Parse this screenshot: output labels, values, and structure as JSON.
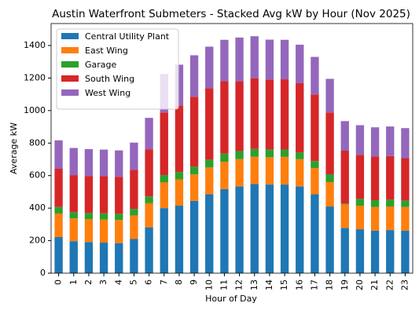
{
  "chart_data": {
    "type": "stacked_bar",
    "title": "Austin Waterfront Submeters - Stacked Avg kW by Hour (Nov 2025)",
    "x_label": "Hour of Day",
    "y_label": "Average kW",
    "categories": [
      "0",
      "1",
      "2",
      "3",
      "4",
      "5",
      "6",
      "7",
      "8",
      "9",
      "10",
      "11",
      "12",
      "13",
      "14",
      "15",
      "16",
      "17",
      "18",
      "19",
      "20",
      "21",
      "22",
      "23"
    ],
    "series": [
      {
        "name": "Central Utility Plant",
        "color": "#1f77b4",
        "values": [
          222,
          197,
          192,
          188,
          185,
          210,
          282,
          400,
          415,
          445,
          485,
          517,
          533,
          548,
          545,
          545,
          533,
          485,
          410,
          278,
          270,
          262,
          265,
          262
        ]
      },
      {
        "name": "East Wing",
        "color": "#ff7f0e",
        "values": [
          145,
          140,
          140,
          142,
          142,
          145,
          148,
          158,
          162,
          162,
          165,
          168,
          168,
          168,
          168,
          170,
          168,
          162,
          150,
          145,
          145,
          145,
          145,
          145
        ]
      },
      {
        "name": "Garage",
        "color": "#2ca02c",
        "values": [
          40,
          38,
          38,
          38,
          38,
          40,
          42,
          45,
          45,
          48,
          48,
          50,
          50,
          48,
          48,
          45,
          42,
          42,
          48,
          5,
          42,
          42,
          42,
          40
        ]
      },
      {
        "name": "South Wing",
        "color": "#d62728",
        "values": [
          235,
          228,
          228,
          228,
          228,
          240,
          290,
          385,
          410,
          430,
          440,
          445,
          430,
          435,
          430,
          432,
          425,
          410,
          380,
          325,
          270,
          268,
          268,
          260
        ]
      },
      {
        "name": "West Wing",
        "color": "#9467bd",
        "values": [
          175,
          167,
          165,
          164,
          162,
          168,
          193,
          237,
          250,
          255,
          255,
          255,
          268,
          258,
          245,
          243,
          237,
          231,
          207,
          182,
          183,
          180,
          182,
          185
        ]
      }
    ],
    "ylim": [
      0,
      1535
    ],
    "yticks": [
      0,
      200,
      400,
      600,
      800,
      1000,
      1200,
      1400
    ],
    "grid": false,
    "legend": "upper left"
  }
}
